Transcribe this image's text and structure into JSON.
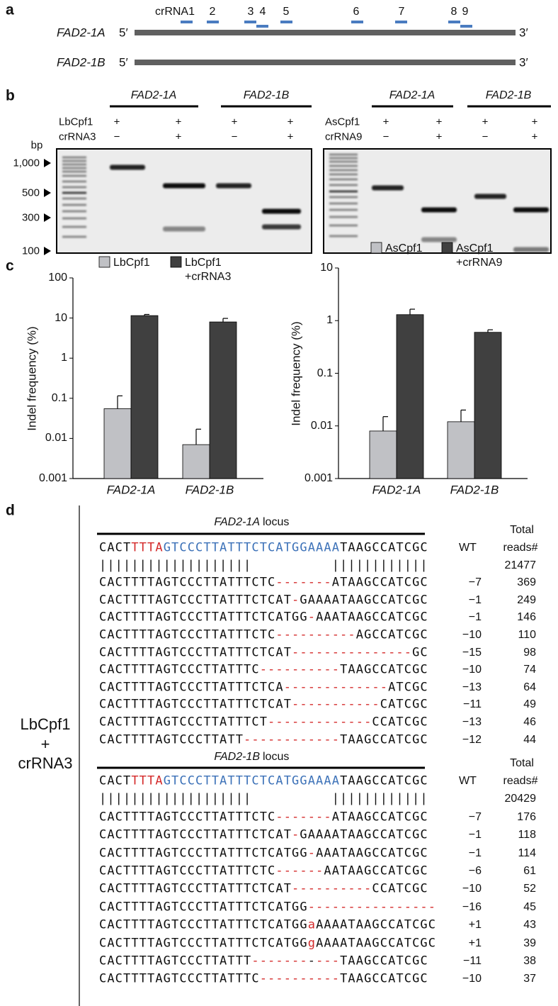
{
  "panel_a": {
    "label": "a",
    "crrnas": [
      "crRNA1",
      "2",
      "3",
      "4",
      "5",
      "6",
      "7",
      "8",
      "9"
    ],
    "genes": [
      "FAD2-1A",
      "FAD2-1B"
    ],
    "end5": "5′",
    "end3": "3′"
  },
  "panel_b": {
    "label": "b",
    "bp": "bp",
    "markers": [
      "1,000",
      "500",
      "300",
      "100"
    ],
    "gels": [
      {
        "genes": [
          "FAD2-1A",
          "FAD2-1B"
        ],
        "rows": [
          {
            "label": "LbCpf1",
            "signs": [
              "+",
              "+",
              "+",
              "+"
            ]
          },
          {
            "label": "crRNA3",
            "signs": [
              "−",
              "+",
              "−",
              "+"
            ]
          }
        ]
      },
      {
        "genes": [
          "FAD2-1A",
          "FAD2-1B"
        ],
        "rows": [
          {
            "label": "AsCpf1",
            "signs": [
              "+",
              "+",
              "+",
              "+"
            ]
          },
          {
            "label": "crRNA9",
            "signs": [
              "−",
              "+",
              "−",
              "+"
            ]
          }
        ]
      }
    ]
  },
  "panel_c": {
    "label": "c"
  },
  "chart_data": [
    {
      "type": "bar",
      "ylabel": "Indel frequency (%)",
      "log_scale": true,
      "categories": [
        "FAD2-1A",
        "FAD2-1B"
      ],
      "ylim": [
        0.001,
        100
      ],
      "yticks": [
        100,
        10,
        1,
        0.1,
        0.01,
        0.001
      ],
      "series": [
        {
          "name": "LbCpf1",
          "color": "#c0c1c5",
          "values": [
            0.055,
            0.007
          ],
          "errors": [
            0.06,
            0.01
          ]
        },
        {
          "name": "LbCpf1 +crRNA3",
          "color": "#404040",
          "values": [
            11.5,
            8
          ],
          "errors": [
            0.8,
            1.8
          ]
        }
      ]
    },
    {
      "type": "bar",
      "ylabel": "Indel frequency (%)",
      "log_scale": true,
      "categories": [
        "FAD2-1A",
        "FAD2-1B"
      ],
      "ylim": [
        0.001,
        10
      ],
      "yticks": [
        10,
        1,
        0.1,
        0.01,
        0.001
      ],
      "series": [
        {
          "name": "AsCpf1",
          "color": "#c0c1c5",
          "values": [
            0.008,
            0.012
          ],
          "errors": [
            0.007,
            0.008
          ]
        },
        {
          "name": "AsCpf1 +crRNA9",
          "color": "#404040",
          "values": [
            1.3,
            0.6
          ],
          "errors": [
            0.35,
            0.07
          ]
        }
      ]
    }
  ],
  "panel_d": {
    "label": "d",
    "condition": [
      "LbCpf1",
      "+",
      "crRNA3"
    ],
    "blocks": [
      {
        "gene": "FAD2-1A",
        "suffix": "locus",
        "header": [
          "Total",
          "reads#"
        ],
        "wt_label": "WT",
        "wt": [
          "CACT",
          {
            "text": "TTTA",
            "color": "#d42a2a"
          },
          {
            "text": "GTCCCTTATTTCTCATGGAAAA",
            "color": "#3d72b8"
          },
          "TAAGCCATCGC"
        ],
        "match": "|||||||||||||||||||          ||||||||||||",
        "total": 21477,
        "rows": [
          {
            "seq": [
              "CACTTTTAGTCCCTTATTTCTC",
              {
                "text": "-------",
                "color": "#d42a2a"
              },
              "ATAAGCCATCGC"
            ],
            "change": "−7",
            "reads": 369
          },
          {
            "seq": [
              "CACTTTTAGTCCCTTATTTCTCAT",
              {
                "text": "-",
                "color": "#d42a2a"
              },
              "GAAAATAAGCCATCGC"
            ],
            "change": "−1",
            "reads": 249
          },
          {
            "seq": [
              "CACTTTTAGTCCCTTATTTCTCATGG",
              {
                "text": "-",
                "color": "#d42a2a"
              },
              "AAATAAGCCATCGC"
            ],
            "change": "−1",
            "reads": 146
          },
          {
            "seq": [
              "CACTTTTAGTCCCTTATTTCTC",
              {
                "text": "----------",
                "color": "#d42a2a"
              },
              "AGCCATCGC"
            ],
            "change": "−10",
            "reads": 110
          },
          {
            "seq": [
              "CACTTTTAGTCCCTTATTTCTCAT",
              {
                "text": "---------------",
                "color": "#d42a2a"
              },
              "GC"
            ],
            "change": "−15",
            "reads": 98
          },
          {
            "seq": [
              "CACTTTTAGTCCCTTATTTC",
              {
                "text": "----------",
                "color": "#d42a2a"
              },
              "TAAGCCATCGC"
            ],
            "change": "−10",
            "reads": 74
          },
          {
            "seq": [
              "CACTTTTAGTCCCTTATTTCTCA",
              {
                "text": "-------------",
                "color": "#d42a2a"
              },
              "ATCGC"
            ],
            "change": "−13",
            "reads": 64
          },
          {
            "seq": [
              "CACTTTTAGTCCCTTATTTCTCAT",
              {
                "text": "-----------",
                "color": "#d42a2a"
              },
              "CATCGC"
            ],
            "change": "−11",
            "reads": 49
          },
          {
            "seq": [
              "CACTTTTAGTCCCTTATTTCT",
              {
                "text": "-------------",
                "color": "#d42a2a"
              },
              "CCATCGC"
            ],
            "change": "−13",
            "reads": 46
          },
          {
            "seq": [
              "CACTTTTAGTCCCTTATT",
              {
                "text": "------------",
                "color": "#d42a2a"
              },
              "TAAGCCATCGC"
            ],
            "change": "−12",
            "reads": 44
          }
        ]
      },
      {
        "gene": "FAD2-1B",
        "suffix": "locus",
        "header": [
          "Total",
          "reads#"
        ],
        "wt_label": "WT",
        "wt": [
          "CACT",
          {
            "text": "TTTA",
            "color": "#d42a2a"
          },
          {
            "text": "GTCCCTTATTTCTCATGGAAAA",
            "color": "#3d72b8"
          },
          "TAAGCCATCGC"
        ],
        "match": "|||||||||||||||||||          ||||||||||||",
        "total": 20429,
        "rows": [
          {
            "seq": [
              "CACTTTTAGTCCCTTATTTCTC",
              {
                "text": "-------",
                "color": "#d42a2a"
              },
              "ATAAGCCATCGC"
            ],
            "change": "−7",
            "reads": 176
          },
          {
            "seq": [
              "CACTTTTAGTCCCTTATTTCTCAT",
              {
                "text": "-",
                "color": "#d42a2a"
              },
              "GAAAATAAGCCATCGC"
            ],
            "change": "−1",
            "reads": 118
          },
          {
            "seq": [
              "CACTTTTAGTCCCTTATTTCTCATGG",
              {
                "text": "-",
                "color": "#d42a2a"
              },
              "AAATAAGCCATCGC"
            ],
            "change": "−1",
            "reads": 114
          },
          {
            "seq": [
              "CACTTTTAGTCCCTTATTTCTC",
              {
                "text": "------",
                "color": "#d42a2a"
              },
              "AATAAGCCATCGC"
            ],
            "change": "−6",
            "reads": 61
          },
          {
            "seq": [
              "CACTTTTAGTCCCTTATTTCTCAT",
              {
                "text": "----------",
                "color": "#d42a2a"
              },
              "CCATCGC"
            ],
            "change": "−10",
            "reads": 52
          },
          {
            "seq": [
              "CACTTTTAGTCCCTTATTTCTCATGG",
              {
                "text": "----------------",
                "color": "#d42a2a"
              }
            ],
            "change": "−16",
            "reads": 45
          },
          {
            "seq": [
              "CACTTTTAGTCCCTTATTTCTCATGG",
              {
                "text": "a",
                "color": "#d42a2a"
              },
              "AAAATAAGCCATCGC"
            ],
            "change": "+1",
            "reads": 43
          },
          {
            "seq": [
              "CACTTTTAGTCCCTTATTTCTCATGG",
              {
                "text": "g",
                "color": "#d42a2a"
              },
              "AAAATAAGCCATCGC"
            ],
            "change": "+1",
            "reads": 39
          },
          {
            "seq": [
              "CACTTTTAGTCCCTTATTT",
              {
                "text": "-------",
                "color": "#d42a2a"
              },
              "-",
              {
                "text": "---",
                "color": "#d42a2a"
              },
              "TAAGCCATCGC"
            ],
            "change": "−11",
            "reads": 38
          },
          {
            "seq": [
              "CACTTTTAGTCCCTTATTTC",
              {
                "text": "----------",
                "color": "#d42a2a"
              },
              "TAAGCCATCGC"
            ],
            "change": "−10",
            "reads": 37
          }
        ]
      }
    ]
  }
}
